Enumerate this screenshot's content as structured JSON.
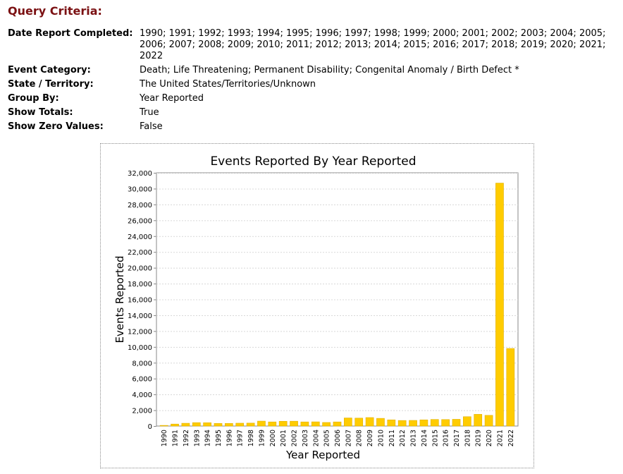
{
  "query": {
    "title": "Query Criteria:",
    "rows": [
      {
        "label": "Date Report Completed:",
        "value": "1990; 1991; 1992; 1993; 1994; 1995; 1996; 1997; 1998; 1999; 2000; 2001; 2002; 2003; 2004; 2005; 2006; 2007; 2008; 2009; 2010; 2011; 2012; 2013; 2014; 2015; 2016; 2017; 2018; 2019; 2020; 2021; 2022"
      },
      {
        "label": "Event Category:",
        "value": "Death; Life Threatening; Permanent Disability; Congenital Anomaly / Birth Defect *"
      },
      {
        "label": "State / Territory:",
        "value": "The United States/Territories/Unknown"
      },
      {
        "label": "Group By:",
        "value": "Year Reported"
      },
      {
        "label": "Show Totals:",
        "value": "True"
      },
      {
        "label": "Show Zero Values:",
        "value": "False"
      }
    ]
  },
  "chart_data": {
    "type": "bar",
    "title": "Events Reported By Year Reported",
    "xlabel": "Year Reported",
    "ylabel": "Events Reported",
    "ylim": [
      0,
      32000
    ],
    "yticks": [
      0,
      2000,
      4000,
      6000,
      8000,
      10000,
      12000,
      14000,
      16000,
      18000,
      20000,
      22000,
      24000,
      26000,
      28000,
      30000,
      32000
    ],
    "grid": true,
    "bar_color": "#ffcc00",
    "categories": [
      "1990",
      "1991",
      "1992",
      "1993",
      "1994",
      "1995",
      "1996",
      "1997",
      "1998",
      "1999",
      "2000",
      "2001",
      "2002",
      "2003",
      "2004",
      "2005",
      "2006",
      "2007",
      "2008",
      "2009",
      "2010",
      "2011",
      "2012",
      "2013",
      "2014",
      "2015",
      "2016",
      "2017",
      "2018",
      "2019",
      "2020",
      "2021",
      "2022"
    ],
    "values": [
      80,
      250,
      350,
      430,
      420,
      330,
      330,
      360,
      370,
      620,
      520,
      600,
      610,
      520,
      530,
      450,
      520,
      1020,
      1000,
      1070,
      970,
      780,
      700,
      710,
      780,
      830,
      820,
      850,
      1180,
      1480,
      1350,
      30700,
      9800
    ]
  }
}
